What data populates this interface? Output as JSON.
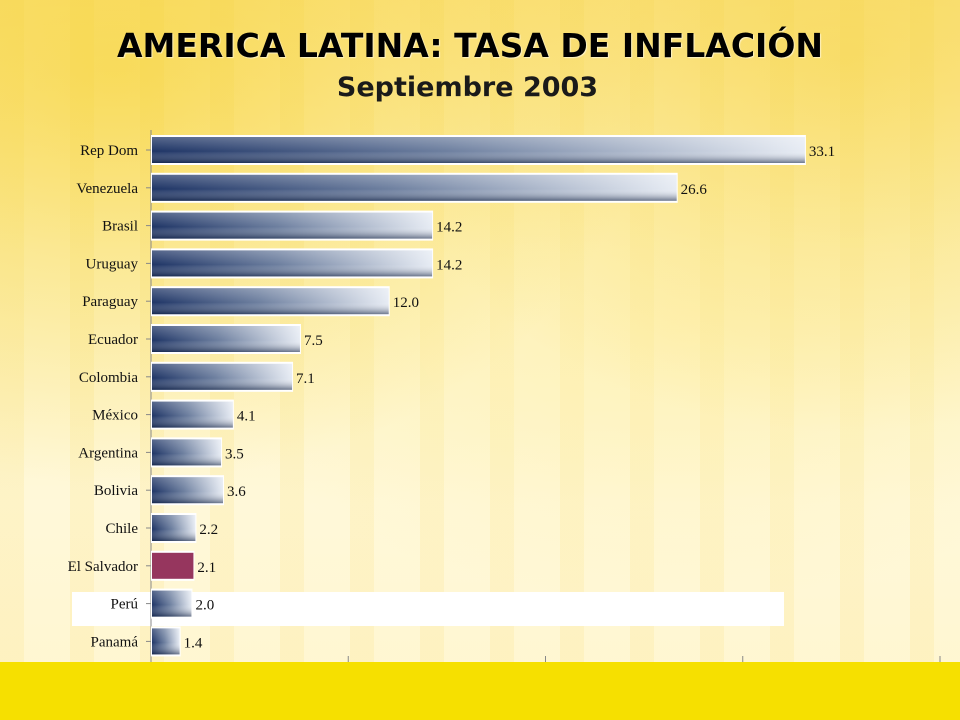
{
  "title": "AMERICA LATINA: TASA DE INFLACIÓN",
  "subtitle": "Septiembre 2003",
  "colors": {
    "bar_dark": "#1f3566",
    "bar_light": "#e7ecf4",
    "highlight": "#96365e",
    "bottom_band": "#f6e000"
  },
  "chart_data": {
    "type": "bar",
    "orientation": "horizontal",
    "categories": [
      "Rep Dom",
      "Venezuela",
      "Brasil",
      "Uruguay",
      "Paraguay",
      "Ecuador",
      "Colombia",
      "México",
      "Argentina",
      "Bolivia",
      "Chile",
      "El Salvador",
      "Perú",
      "Panamá"
    ],
    "values": [
      33.1,
      26.6,
      14.2,
      14.2,
      12.0,
      7.5,
      7.1,
      4.1,
      3.5,
      3.6,
      2.2,
      2.1,
      2.0,
      1.4
    ],
    "value_labels": [
      "33.1",
      "26.6",
      "14.2",
      "14.2",
      "12.0",
      "7.5",
      "7.1",
      "4.1",
      "3.5",
      "3.6",
      "2.2",
      "2.1",
      "2.0",
      "1.4"
    ],
    "highlighted_category": "El Salvador",
    "xlim": [
      0,
      40
    ],
    "grid": false,
    "legend": "none"
  }
}
